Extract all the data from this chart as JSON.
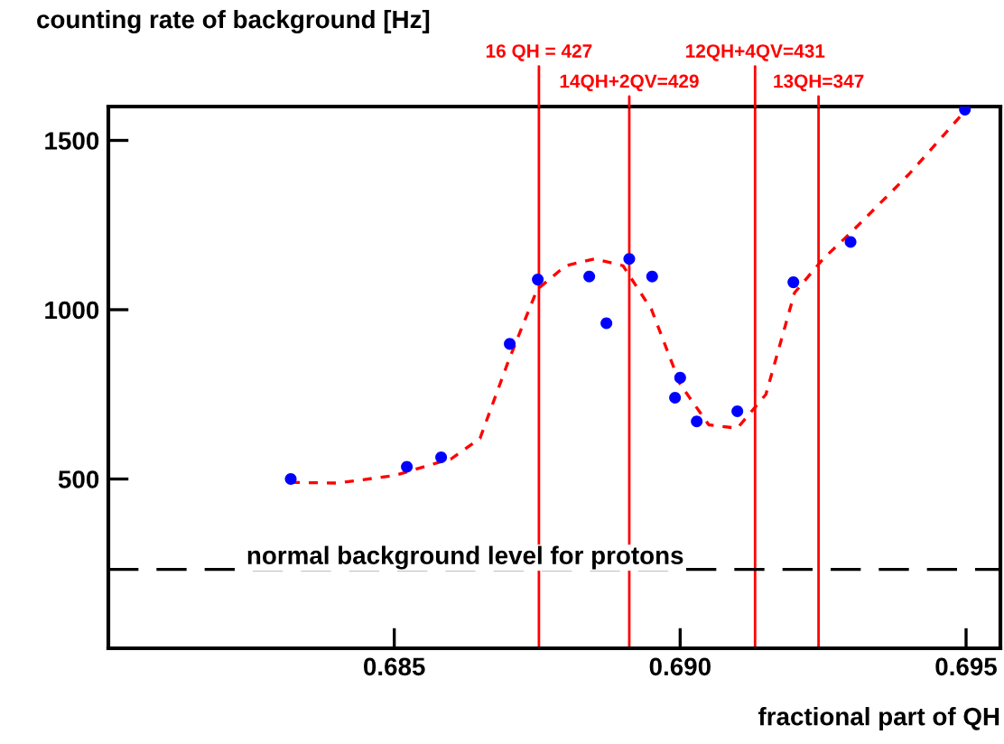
{
  "chart_data": {
    "type": "scatter",
    "ylabel": "counting rate of background [Hz]",
    "xlabel": "fractional part of QH",
    "series": [
      {
        "color": "#0000ff",
        "marker": "circle",
        "x": [
          0.68319,
          0.68522,
          0.68582,
          0.68702,
          0.68751,
          0.68841,
          0.68871,
          0.68911,
          0.68951,
          0.68991,
          0.69,
          0.69029,
          0.691,
          0.69198,
          0.69298,
          0.69498
        ],
        "values": [
          500,
          536,
          564,
          899,
          1089,
          1098,
          960,
          1150,
          1098,
          740,
          799,
          670,
          700,
          1081,
          1200,
          1591
        ]
      },
      {
        "type": "line",
        "color": "#ff0000",
        "line_style": "dashed",
        "marker": "none",
        "x": [
          0.68319,
          0.684,
          0.685,
          0.686,
          0.6865,
          0.687,
          0.6875,
          0.688,
          0.6885,
          0.689,
          0.6895,
          0.69,
          0.6905,
          0.691,
          0.6915,
          0.692,
          0.6925,
          0.693,
          0.694,
          0.695
        ],
        "values": [
          490,
          488,
          510,
          560,
          620,
          850,
          1060,
          1130,
          1150,
          1130,
          1000,
          780,
          660,
          650,
          750,
          1050,
          1150,
          1230,
          1400,
          1590
        ]
      }
    ],
    "xlim": [
      0.68,
      0.6956
    ],
    "xticks": [
      {
        "value": 0.685,
        "label": "0.685"
      },
      {
        "value": 0.69,
        "label": "0.690"
      },
      {
        "value": 0.695,
        "label": "0.695"
      }
    ],
    "ylim": [
      0,
      1600
    ],
    "yticks": [
      500,
      1000,
      1500
    ],
    "ref_lines": [
      {
        "axis": "x",
        "value": 0.68753,
        "color": "#ff0000",
        "line_style": "solid"
      },
      {
        "axis": "x",
        "value": 0.68911,
        "color": "#ff0000",
        "line_style": "solid"
      },
      {
        "axis": "x",
        "value": 0.69131,
        "color": "#ff0000",
        "line_style": "solid"
      },
      {
        "axis": "x",
        "value": 0.69242,
        "color": "#ff0000",
        "line_style": "solid"
      },
      {
        "axis": "y",
        "value": 233,
        "label": "normal background level for protons",
        "color": "#000000",
        "line_style": "dashed"
      }
    ],
    "annotations": [
      {
        "text": "16 QH = 427",
        "x": 0.68753,
        "y": 1600
      },
      {
        "text": "14QH+2QV=429",
        "x": 0.68911,
        "y": 1600
      },
      {
        "text": "12QH+4QV=431",
        "x": 0.69131,
        "y": 1600
      },
      {
        "text": "13QH=347",
        "x": 0.69242,
        "y": 1600
      }
    ],
    "grid": false,
    "legend": false
  }
}
